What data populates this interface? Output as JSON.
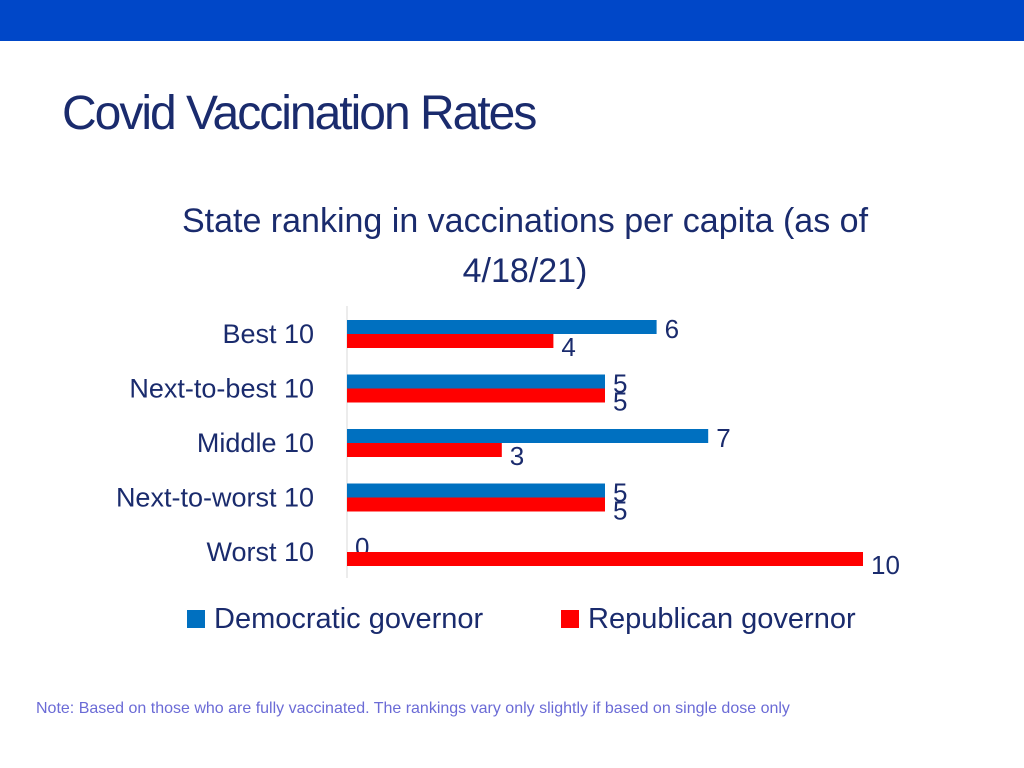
{
  "slide": {
    "title": "Covid Vaccination Rates",
    "note": "Note: Based on those who are fully vaccinated. The rankings vary only slightly if based on single dose only"
  },
  "colors": {
    "top_bar": "#0047C8",
    "title": "#1A2B6D",
    "democratic": "#0070C0",
    "republican": "#FF0000",
    "note": "#6B6BD6"
  },
  "chart_data": {
    "type": "bar",
    "orientation": "horizontal",
    "title": "State ranking in vaccinations per capita (as of 4/18/21)",
    "categories": [
      "Best 10",
      "Next-to-best 10",
      "Middle 10",
      "Next-to-worst 10",
      "Worst 10"
    ],
    "series": [
      {
        "name": "Democratic governor",
        "values": [
          6,
          5,
          7,
          5,
          0
        ],
        "color": "#0070C0"
      },
      {
        "name": "Republican governor",
        "values": [
          4,
          5,
          3,
          5,
          10
        ],
        "color": "#FF0000"
      }
    ],
    "xlim": [
      0,
      10
    ],
    "grid": false,
    "data_labels": true,
    "legend_position": "bottom"
  }
}
